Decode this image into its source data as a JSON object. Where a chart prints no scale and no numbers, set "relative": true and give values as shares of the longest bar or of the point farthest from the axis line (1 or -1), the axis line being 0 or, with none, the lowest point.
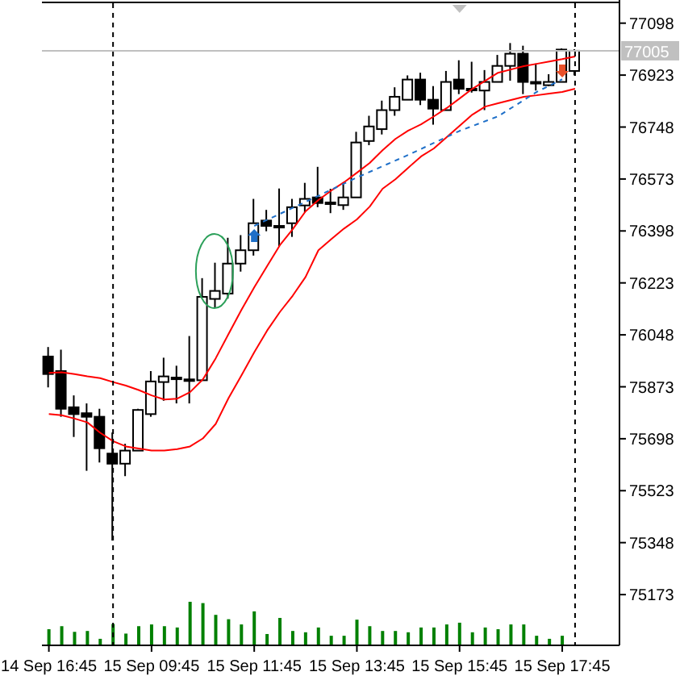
{
  "chart_data": [
    {
      "type": "candlestick",
      "categories": [
        "14 Sep 16:45",
        null,
        null,
        null,
        null,
        null,
        null,
        null,
        "15 Sep 09:45",
        null,
        null,
        null,
        null,
        null,
        null,
        null,
        "15 Sep 11:45",
        null,
        null,
        null,
        null,
        null,
        null,
        null,
        "15 Sep 13:45",
        null,
        null,
        null,
        null,
        null,
        null,
        null,
        "15 Sep 15:45",
        null,
        null,
        null,
        null,
        null,
        null,
        null,
        "15 Sep 17:45",
        null
      ],
      "ohlc": [
        [
          75975,
          76007,
          75871,
          75916
        ],
        [
          75926,
          75998,
          75772,
          75799
        ],
        [
          75804,
          75844,
          75704,
          75781
        ],
        [
          75784,
          75817,
          75590,
          75772
        ],
        [
          75772,
          75799,
          75618,
          75666
        ],
        [
          75648,
          75719,
          75355,
          75614
        ],
        [
          75614,
          75681,
          75572,
          75658
        ],
        [
          75658,
          75799,
          75658,
          75795
        ],
        [
          75781,
          75926,
          75772,
          75891
        ],
        [
          75889,
          75971,
          75826,
          75908
        ],
        [
          75904,
          75944,
          75817,
          75900
        ],
        [
          75898,
          76044,
          75817,
          75896
        ],
        [
          75895,
          76239,
          75895,
          76176
        ],
        [
          76169,
          76291,
          76139,
          76196
        ],
        [
          76187,
          76375,
          76170,
          76288
        ],
        [
          76288,
          76384,
          76261,
          76333
        ],
        [
          76333,
          76506,
          76315,
          76424
        ],
        [
          76433,
          76469,
          76397,
          76415
        ],
        [
          76415,
          76541,
          76346,
          76413
        ],
        [
          76424,
          76506,
          76378,
          76478
        ],
        [
          76484,
          76560,
          76460,
          76506
        ],
        [
          76511,
          76614,
          76478,
          76492
        ],
        [
          76494,
          76540,
          76458,
          76492
        ],
        [
          76485,
          76560,
          76469,
          76511
        ],
        [
          76511,
          76732,
          76511,
          76696
        ],
        [
          76701,
          76786,
          76687,
          76750
        ],
        [
          76741,
          76837,
          76723,
          76805
        ],
        [
          76805,
          76882,
          76786,
          76850
        ],
        [
          76840,
          76922,
          76840,
          76908
        ],
        [
          76908,
          76931,
          76822,
          76840
        ],
        [
          76840,
          76886,
          76756,
          76810
        ],
        [
          76805,
          76937,
          76805,
          76900
        ],
        [
          76908,
          76973,
          76859,
          76877
        ],
        [
          76877,
          76968,
          76864,
          76875
        ],
        [
          76871,
          76940,
          76805,
          76900
        ],
        [
          76900,
          76991,
          76900,
          76954
        ],
        [
          76954,
          77031,
          76904,
          76995
        ],
        [
          76995,
          77022,
          76859,
          76900
        ],
        [
          76900,
          76962,
          76871,
          76898
        ],
        [
          76889,
          76926,
          76886,
          76900
        ],
        [
          76900,
          77013,
          76900,
          77009
        ],
        [
          76937,
          77010,
          76922,
          77005
        ]
      ],
      "series": [
        {
          "type": "line",
          "color": "#ff0000",
          "values": [
            75920,
            75922,
            75916,
            75908,
            75902,
            75889,
            75877,
            75862,
            75844,
            75830,
            75833,
            75855,
            75898,
            75969,
            76051,
            76132,
            76208,
            76279,
            76350,
            76404,
            76464,
            76502,
            76534,
            76562,
            76594,
            76627,
            76670,
            76708,
            76736,
            76757,
            76784,
            76812,
            76844,
            76877,
            76904,
            76931,
            76942,
            76953,
            76961,
            76969,
            76977,
            76986
          ]
        },
        {
          "type": "line",
          "color": "#ff0000",
          "values": [
            75781,
            75777,
            75766,
            75753,
            75718,
            75690,
            75672,
            75665,
            75658,
            75658,
            75663,
            75672,
            75699,
            75748,
            75835,
            75911,
            75989,
            76062,
            76125,
            76180,
            76243,
            76333,
            76370,
            76406,
            76437,
            76480,
            76540,
            76572,
            76611,
            76649,
            76676,
            76714,
            76752,
            76790,
            76817,
            76828,
            76839,
            76850,
            76855,
            76861,
            76866,
            76877
          ]
        },
        {
          "type": "line",
          "color": "#1e6fc8",
          "line_style": "dashed",
          "values": [
            null,
            null,
            null,
            null,
            null,
            null,
            null,
            null,
            null,
            null,
            null,
            null,
            null,
            null,
            null,
            null,
            76415,
            null,
            null,
            null,
            76496,
            null,
            null,
            null,
            76578,
            null,
            null,
            null,
            76654,
            null,
            null,
            null,
            76735,
            null,
            null,
            76784,
            null,
            null,
            76866,
            null,
            76909,
            null
          ]
        }
      ],
      "ylim": [
        75002,
        77176
      ],
      "yticks": [
        75173,
        75348,
        75523,
        75698,
        75873,
        76048,
        76223,
        76398,
        76573,
        76748,
        76923,
        77098
      ],
      "ref_lines": [
        {
          "axis": "y",
          "value": 77005,
          "label": "77005",
          "color": "#c0c0c0"
        }
      ]
    },
    {
      "type": "bar",
      "relative": true,
      "color": "#008000",
      "categories": [
        null,
        null,
        null,
        null,
        null,
        null,
        null,
        null,
        null,
        null,
        null,
        null,
        null,
        null,
        null,
        null,
        null,
        null,
        null,
        null,
        null,
        null,
        null,
        null,
        null,
        null,
        null,
        null,
        null,
        null,
        null,
        null,
        null,
        null,
        null,
        null,
        null,
        null,
        null,
        null,
        null,
        null
      ],
      "values": [
        0.37,
        0.44,
        0.31,
        0.33,
        0.15,
        0.49,
        0.27,
        0.44,
        0.48,
        0.44,
        0.41,
        1,
        0.97,
        0.7,
        0.6,
        0.48,
        0.78,
        0.26,
        0.63,
        0.33,
        0.3,
        0.41,
        0.22,
        0.22,
        0.59,
        0.44,
        0.33,
        0.33,
        0.3,
        0.41,
        0.41,
        0.48,
        0.52,
        0.3,
        0.41,
        0.37,
        0.48,
        0.48,
        0.22,
        0.15,
        0.22,
        null
      ]
    }
  ]
}
